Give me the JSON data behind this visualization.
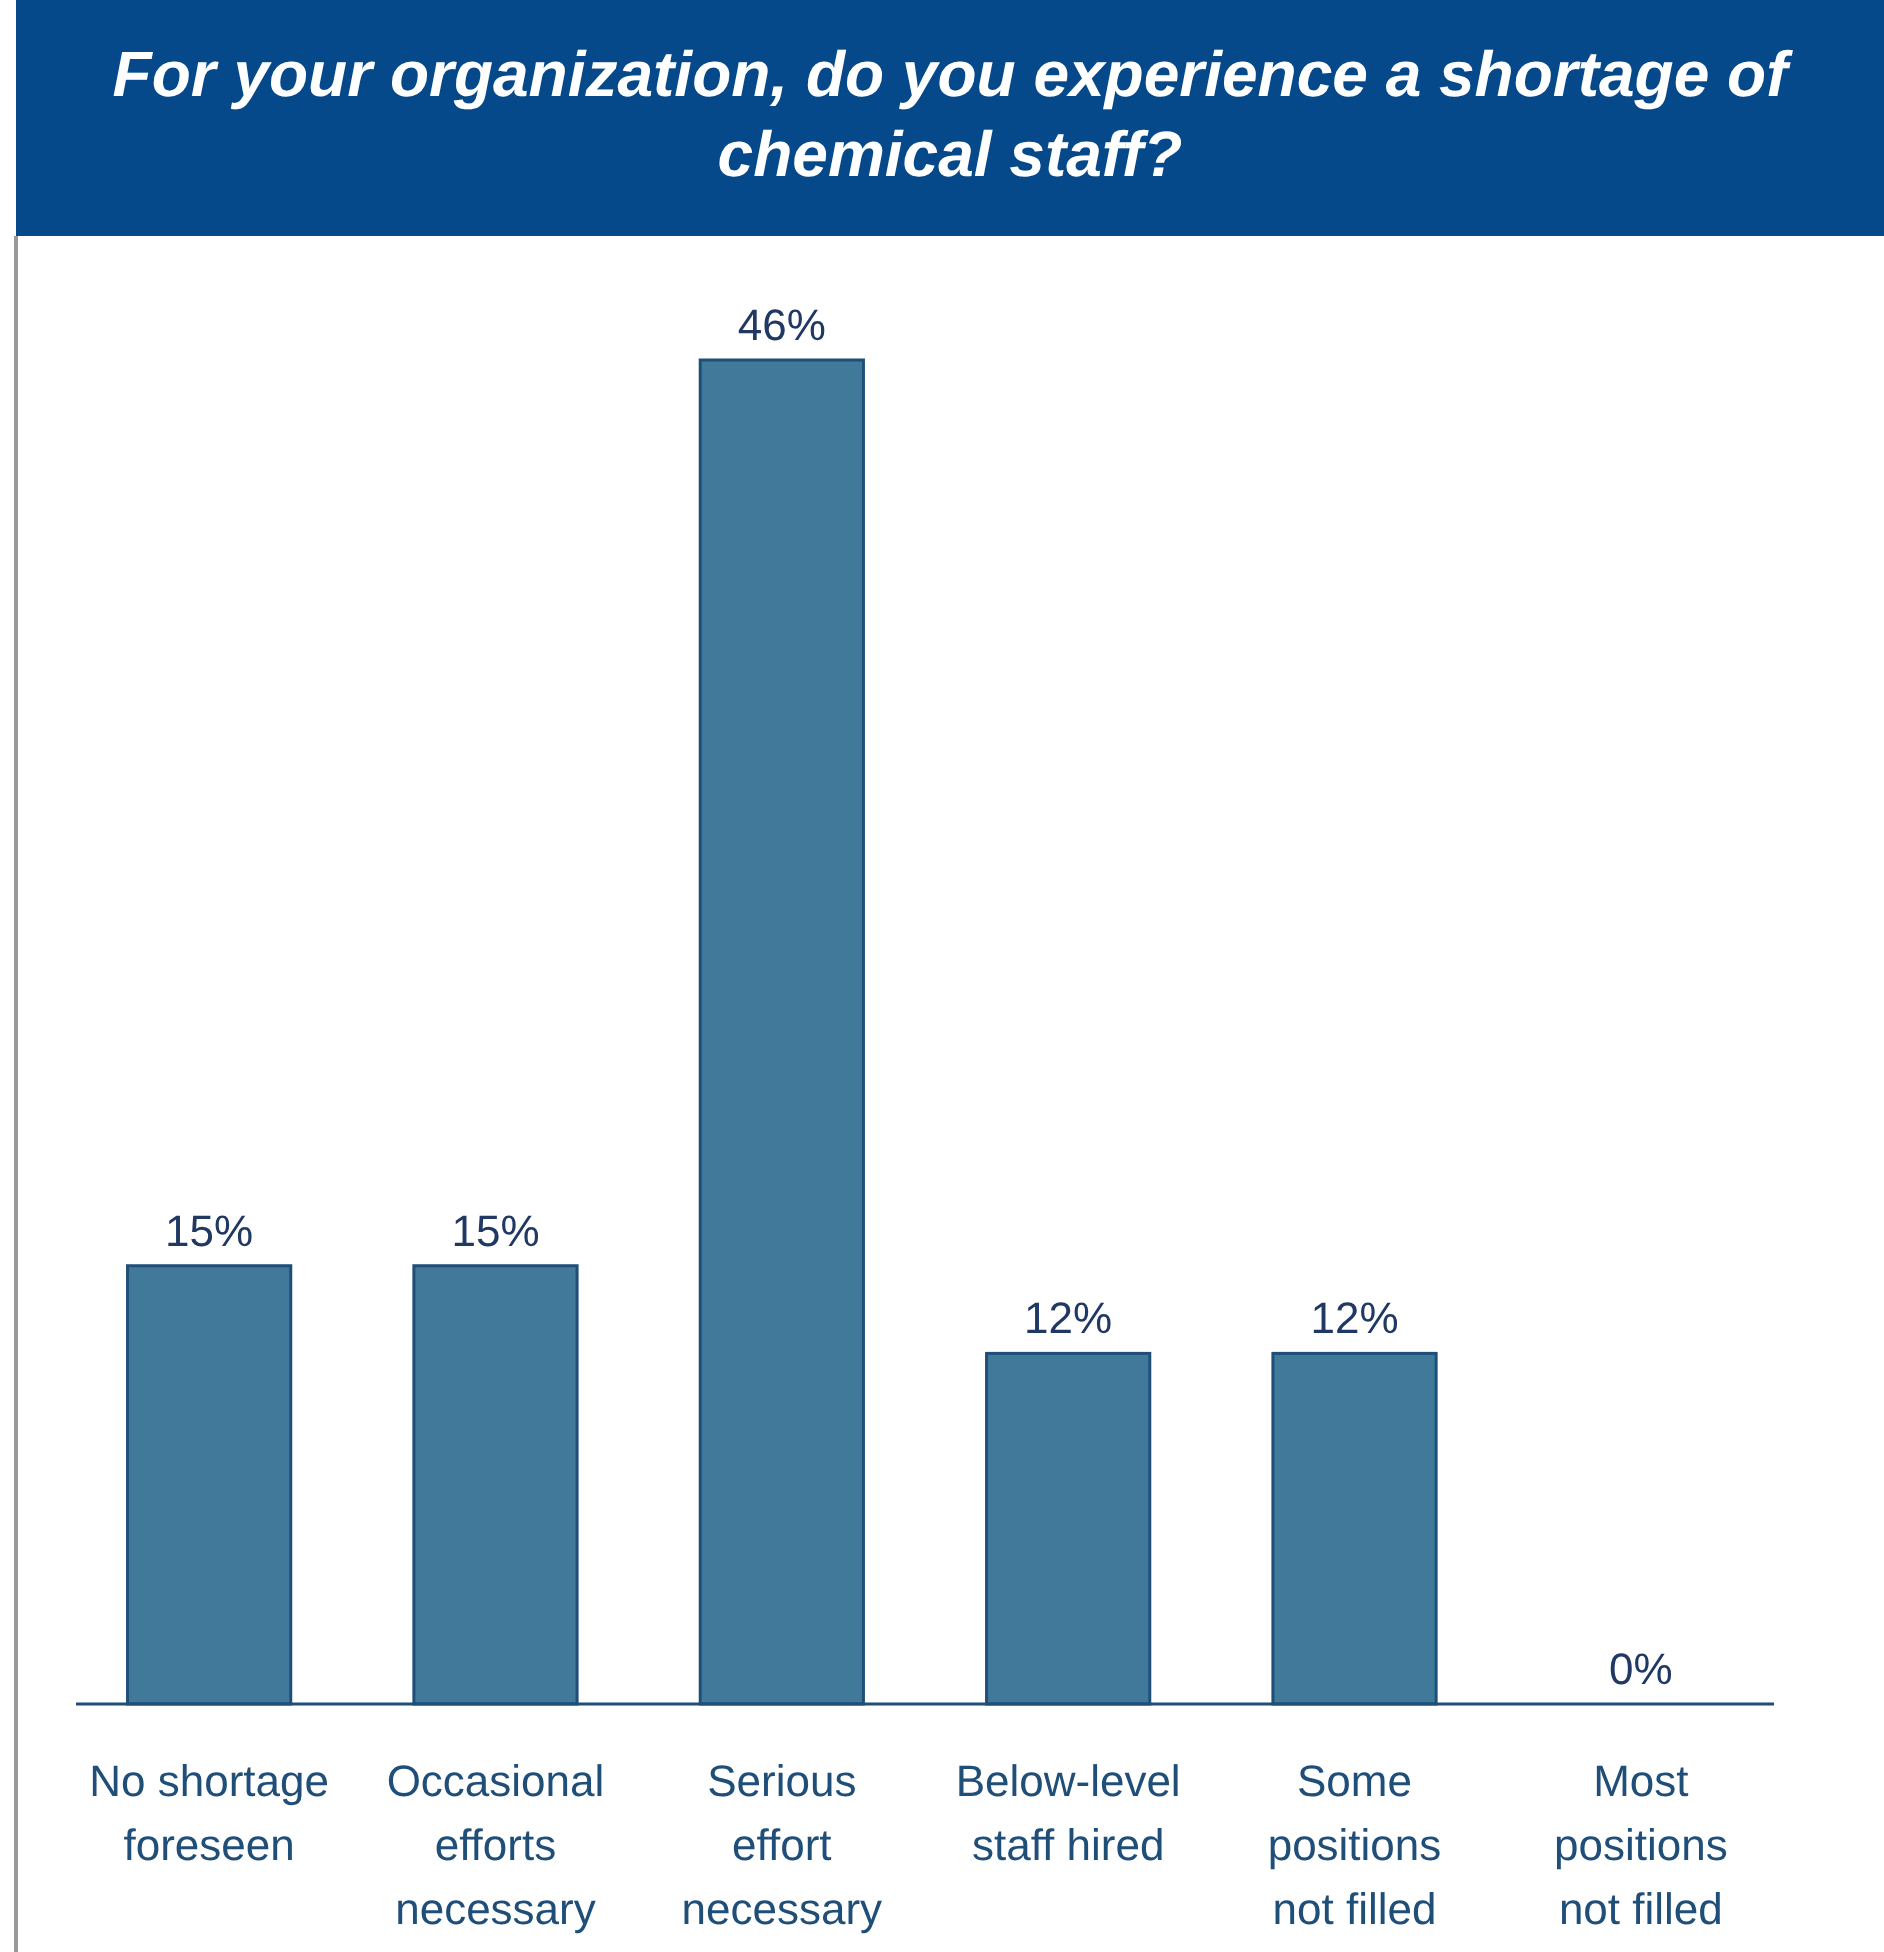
{
  "chart_data": {
    "type": "bar",
    "title": "For your organization, do you experience a shortage of chemical staff?",
    "categories": [
      "No shortage foreseen",
      "Occasional efforts necessary",
      "Serious effort necessary",
      "Below-level staff hired",
      "Some positions not filled",
      "Most positions not filled"
    ],
    "values": [
      15,
      15,
      46,
      12,
      12,
      0
    ],
    "value_labels": [
      "15%",
      "15%",
      "46%",
      "12%",
      "12%",
      "0%"
    ],
    "color": "#41799a"
  }
}
